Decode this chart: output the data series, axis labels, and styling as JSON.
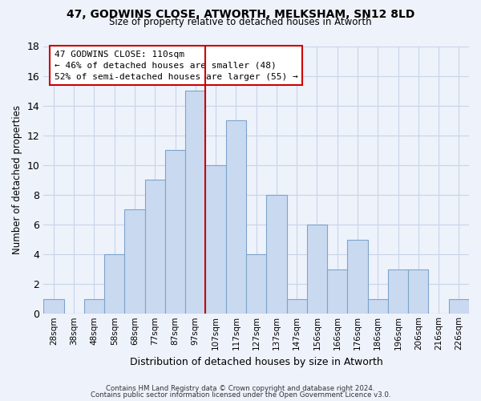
{
  "title": "47, GODWINS CLOSE, ATWORTH, MELKSHAM, SN12 8LD",
  "subtitle": "Size of property relative to detached houses in Atworth",
  "xlabel": "Distribution of detached houses by size in Atworth",
  "ylabel": "Number of detached properties",
  "bar_labels": [
    "28sqm",
    "38sqm",
    "48sqm",
    "58sqm",
    "68sqm",
    "77sqm",
    "87sqm",
    "97sqm",
    "107sqm",
    "117sqm",
    "127sqm",
    "137sqm",
    "147sqm",
    "156sqm",
    "166sqm",
    "176sqm",
    "186sqm",
    "196sqm",
    "206sqm",
    "216sqm",
    "226sqm"
  ],
  "bar_values": [
    1,
    0,
    1,
    4,
    7,
    9,
    11,
    15,
    10,
    13,
    4,
    8,
    1,
    6,
    3,
    5,
    1,
    3,
    3,
    0,
    1
  ],
  "bar_color": "#c9d9f0",
  "bar_edge_color": "#7da4cc",
  "ylim": [
    0,
    18
  ],
  "yticks": [
    0,
    2,
    4,
    6,
    8,
    10,
    12,
    14,
    16,
    18
  ],
  "property_line_color": "#cc0000",
  "annotation_title": "47 GODWINS CLOSE: 110sqm",
  "annotation_line1": "← 46% of detached houses are smaller (48)",
  "annotation_line2": "52% of semi-detached houses are larger (55) →",
  "annotation_box_color": "#cc0000",
  "bg_color": "#eef2fb",
  "grid_color": "#c8d4e8",
  "footer_line1": "Contains HM Land Registry data © Crown copyright and database right 2024.",
  "footer_line2": "Contains public sector information licensed under the Open Government Licence v3.0."
}
